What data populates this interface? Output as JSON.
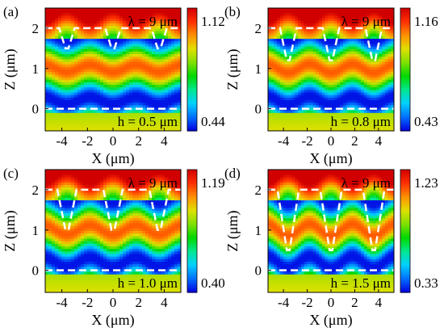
{
  "figure": {
    "panels": [
      {
        "label": "(a)",
        "wavelength_label": "λ = 9 μm",
        "height_label": "h = 0.5 μm",
        "cbar_max": "1.12",
        "cbar_min": "0.44"
      },
      {
        "label": "(b)",
        "wavelength_label": "λ = 9 μm",
        "height_label": "h = 0.8 μm",
        "cbar_max": "1.16",
        "cbar_min": "0.43"
      },
      {
        "label": "(c)",
        "wavelength_label": "λ = 9 μm",
        "height_label": "h = 1.0 μm",
        "cbar_max": "1.19",
        "cbar_min": "0.40"
      },
      {
        "label": "(d)",
        "wavelength_label": "λ = 9 μm",
        "height_label": "h = 1.5 μm",
        "cbar_max": "1.23",
        "cbar_min": "0.33"
      }
    ],
    "colormap": [
      "#0000e0",
      "#0070ff",
      "#00d0ff",
      "#00e890",
      "#00d800",
      "#80e000",
      "#e0e000",
      "#ff9000",
      "#ff3000",
      "#d00000"
    ]
  },
  "chart_data": [
    {
      "type": "heatmap",
      "title": "",
      "xlabel": "X (μm)",
      "ylabel": "Z (μm)",
      "xlim": [
        -5.3,
        5.3
      ],
      "ylim": [
        -0.55,
        2.5
      ],
      "xticks": [
        -4,
        -2,
        0,
        2,
        4
      ],
      "yticks": [
        0,
        1,
        2
      ],
      "colorbar": {
        "min": 0.44,
        "max": 1.12
      },
      "grating": {
        "top_z": 2.0,
        "groove_depth": 0.5,
        "period": 3.6,
        "groove_centers": [
          -3.6,
          0,
          3.6
        ]
      },
      "substrate_line_z": 0
    },
    {
      "type": "heatmap",
      "title": "",
      "xlabel": "X (μm)",
      "ylabel": "Z (μm)",
      "xlim": [
        -5.3,
        5.3
      ],
      "ylim": [
        -0.55,
        2.5
      ],
      "xticks": [
        -4,
        -2,
        0,
        2,
        4
      ],
      "yticks": [
        0,
        1,
        2
      ],
      "colorbar": {
        "min": 0.43,
        "max": 1.16
      },
      "grating": {
        "top_z": 2.0,
        "groove_depth": 0.8,
        "period": 3.6,
        "groove_centers": [
          -3.6,
          0,
          3.6
        ]
      },
      "substrate_line_z": 0
    },
    {
      "type": "heatmap",
      "title": "",
      "xlabel": "X (μm)",
      "ylabel": "Z (μm)",
      "xlim": [
        -5.3,
        5.3
      ],
      "ylim": [
        -0.55,
        2.5
      ],
      "xticks": [
        -4,
        -2,
        0,
        2,
        4
      ],
      "yticks": [
        0,
        1,
        2
      ],
      "colorbar": {
        "min": 0.4,
        "max": 1.19
      },
      "grating": {
        "top_z": 2.0,
        "groove_depth": 1.0,
        "period": 3.6,
        "groove_centers": [
          -3.6,
          0,
          3.6
        ]
      },
      "substrate_line_z": 0
    },
    {
      "type": "heatmap",
      "title": "",
      "xlabel": "X (μm)",
      "ylabel": "Z (μm)",
      "xlim": [
        -5.3,
        5.3
      ],
      "ylim": [
        -0.55,
        2.5
      ],
      "xticks": [
        -4,
        -2,
        0,
        2,
        4
      ],
      "yticks": [
        0,
        1,
        2
      ],
      "colorbar": {
        "min": 0.33,
        "max": 1.23
      },
      "grating": {
        "top_z": 2.0,
        "groove_depth": 1.5,
        "period": 3.6,
        "groove_centers": [
          -3.6,
          0,
          3.6
        ]
      },
      "substrate_line_z": 0
    }
  ]
}
